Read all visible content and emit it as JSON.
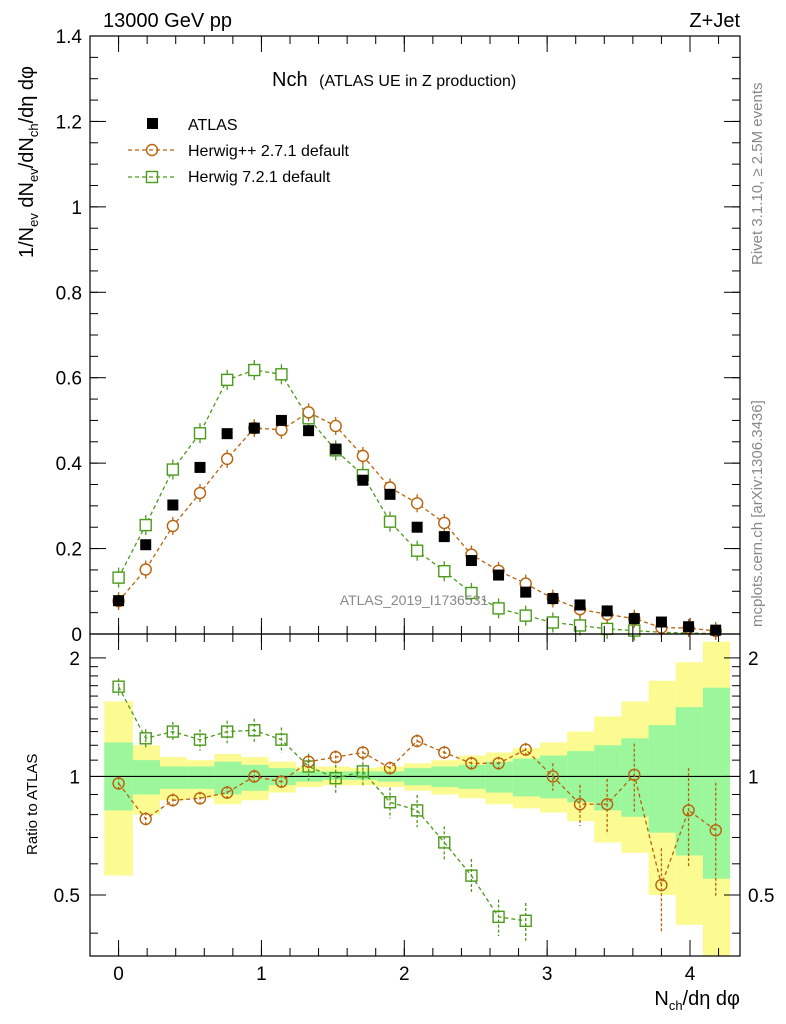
{
  "header": {
    "energy_label": "13000 GeV pp",
    "process_label": "Z+Jet"
  },
  "side_labels": {
    "rivet": "Rivet 3.1.10, ≥ 2.5M events",
    "mcplots": "mcplots.cern.ch [arXiv:1306.3436]"
  },
  "watermark": "ATLAS_2019_I1736531",
  "colors": {
    "data": "#000000",
    "herwigpp": "#b8620c",
    "herwig7": "#4c9a1c",
    "band_inner": "#9cf79c",
    "band_outer": "#fbfb92"
  },
  "chart_data": [
    {
      "type": "scatter",
      "panel": "main",
      "title": "Nch",
      "subtitle": "(ATLAS UE in Z production)",
      "xlabel": "N_ch/dη dφ",
      "ylabel": "1/N_ev dN_ev/dN_ch/dη dφ",
      "xlim": [
        -0.2,
        4.35
      ],
      "ylim": [
        0,
        1.4
      ],
      "yticks": [
        "0",
        "0.2",
        "0.4",
        "0.6",
        "0.8",
        "1",
        "1.2",
        "1.4"
      ],
      "legend_position": "top-left",
      "series": [
        {
          "name": "ATLAS",
          "marker": "filled-square",
          "x": [
            0.0,
            0.19,
            0.38,
            0.57,
            0.76,
            0.95,
            1.14,
            1.33,
            1.52,
            1.71,
            1.9,
            2.09,
            2.28,
            2.47,
            2.66,
            2.85,
            3.04,
            3.23,
            3.42,
            3.61,
            3.8,
            3.99,
            4.18
          ],
          "values": [
            0.078,
            0.209,
            0.302,
            0.39,
            0.469,
            0.482,
            0.5,
            0.476,
            0.433,
            0.36,
            0.327,
            0.25,
            0.228,
            0.172,
            0.138,
            0.098,
            0.083,
            0.068,
            0.054,
            0.036,
            0.028,
            0.017,
            0.009
          ]
        },
        {
          "name": "Herwig++ 2.7.1 default",
          "marker": "open-circle",
          "x": [
            0.0,
            0.19,
            0.38,
            0.57,
            0.76,
            0.95,
            1.14,
            1.33,
            1.52,
            1.71,
            1.9,
            2.09,
            2.28,
            2.47,
            2.66,
            2.85,
            3.04,
            3.23,
            3.42,
            3.61,
            3.8,
            3.99,
            4.18
          ],
          "values": [
            0.077,
            0.151,
            0.253,
            0.33,
            0.41,
            0.482,
            0.478,
            0.519,
            0.487,
            0.417,
            0.343,
            0.306,
            0.26,
            0.186,
            0.148,
            0.118,
            0.083,
            0.058,
            0.046,
            0.036,
            0.015,
            0.014,
            0.007
          ]
        },
        {
          "name": "Herwig 7.2.1 default",
          "marker": "open-square",
          "x": [
            0.0,
            0.19,
            0.38,
            0.57,
            0.76,
            0.95,
            1.14,
            1.33,
            1.52,
            1.71,
            1.9,
            2.09,
            2.28,
            2.47,
            2.66,
            2.85,
            3.04,
            3.23,
            3.42,
            3.61,
            3.8,
            3.99,
            4.18
          ],
          "values": [
            0.132,
            0.255,
            0.385,
            0.47,
            0.595,
            0.618,
            0.608,
            0.505,
            0.43,
            0.372,
            0.263,
            0.195,
            0.147,
            0.096,
            0.06,
            0.043,
            0.027,
            0.02,
            0.012,
            0.008,
            0.004,
            0.002,
            0.001
          ]
        }
      ]
    },
    {
      "type": "line",
      "panel": "ratio",
      "xlabel": "N_ch/dη dφ",
      "ylabel": "Ratio to ATLAS",
      "xlim": [
        -0.2,
        4.35
      ],
      "ylim": [
        0.35,
        2.3
      ],
      "scale": "log",
      "xticks": [
        "0",
        "1",
        "2",
        "3",
        "4"
      ],
      "yticks": [
        "0.5",
        "1",
        "2"
      ],
      "bands": {
        "edges": [
          -0.1,
          0.1,
          0.29,
          0.48,
          0.67,
          0.86,
          1.05,
          1.24,
          1.43,
          1.62,
          1.81,
          2.0,
          2.19,
          2.38,
          2.57,
          2.76,
          2.95,
          3.14,
          3.33,
          3.52,
          3.71,
          3.9,
          4.09,
          4.28
        ],
        "outer_low": [
          0.56,
          0.8,
          0.87,
          0.88,
          0.85,
          0.87,
          0.91,
          0.94,
          0.95,
          0.95,
          0.94,
          0.92,
          0.9,
          0.88,
          0.85,
          0.83,
          0.81,
          0.77,
          0.68,
          0.64,
          0.5,
          0.42,
          0.35
        ],
        "outer_high": [
          1.55,
          1.2,
          1.12,
          1.1,
          1.14,
          1.12,
          1.09,
          1.06,
          1.06,
          1.05,
          1.06,
          1.08,
          1.1,
          1.13,
          1.15,
          1.18,
          1.22,
          1.3,
          1.42,
          1.55,
          1.75,
          1.95,
          2.2
        ],
        "inner_low": [
          0.82,
          0.9,
          0.93,
          0.93,
          0.9,
          0.92,
          0.95,
          0.97,
          0.98,
          0.98,
          0.97,
          0.95,
          0.94,
          0.93,
          0.91,
          0.89,
          0.88,
          0.86,
          0.82,
          0.79,
          0.72,
          0.63,
          0.55
        ],
        "inner_high": [
          1.22,
          1.1,
          1.06,
          1.06,
          1.09,
          1.07,
          1.05,
          1.03,
          1.03,
          1.03,
          1.03,
          1.05,
          1.06,
          1.07,
          1.09,
          1.11,
          1.13,
          1.16,
          1.2,
          1.25,
          1.35,
          1.5,
          1.68
        ]
      },
      "series": [
        {
          "name": "Herwig++ 2.7.1 default",
          "x": [
            0.0,
            0.19,
            0.38,
            0.57,
            0.76,
            0.95,
            1.14,
            1.33,
            1.52,
            1.71,
            1.9,
            2.09,
            2.28,
            2.47,
            2.66,
            2.85,
            3.04,
            3.23,
            3.42,
            3.61,
            3.8,
            3.99,
            4.18
          ],
          "values": [
            0.96,
            0.78,
            0.87,
            0.88,
            0.91,
            1.0,
            0.97,
            1.09,
            1.12,
            1.15,
            1.05,
            1.23,
            1.15,
            1.08,
            1.08,
            1.17,
            1.0,
            0.85,
            0.85,
            1.01,
            0.53,
            0.82,
            0.73
          ]
        },
        {
          "name": "Herwig 7.2.1 default",
          "x": [
            0.0,
            0.19,
            0.38,
            0.57,
            0.76,
            0.95,
            1.14,
            1.33,
            1.52,
            1.71,
            1.9,
            2.09,
            2.28,
            2.47,
            2.66,
            2.85
          ],
          "values": [
            1.69,
            1.25,
            1.3,
            1.24,
            1.3,
            1.31,
            1.24,
            1.06,
            0.99,
            1.03,
            0.86,
            0.82,
            0.68,
            0.56,
            0.44,
            0.43
          ]
        }
      ]
    }
  ]
}
